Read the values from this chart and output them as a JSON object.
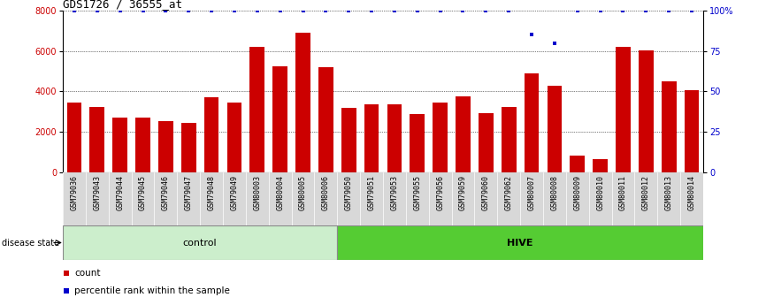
{
  "title": "GDS1726 / 36555_at",
  "samples": [
    "GSM79036",
    "GSM79043",
    "GSM79044",
    "GSM79045",
    "GSM79046",
    "GSM79047",
    "GSM79048",
    "GSM79049",
    "GSM80003",
    "GSM80004",
    "GSM80005",
    "GSM80006",
    "GSM79050",
    "GSM79051",
    "GSM79053",
    "GSM79055",
    "GSM79056",
    "GSM79059",
    "GSM79060",
    "GSM79062",
    "GSM80007",
    "GSM80008",
    "GSM80009",
    "GSM80010",
    "GSM80011",
    "GSM80012",
    "GSM80013",
    "GSM80014"
  ],
  "counts": [
    3450,
    3250,
    2700,
    2700,
    2550,
    2450,
    3700,
    3450,
    6200,
    5250,
    6900,
    5200,
    3200,
    3350,
    3350,
    2900,
    3450,
    3750,
    2950,
    3250,
    4900,
    4300,
    850,
    650,
    6200,
    6050,
    4500,
    4050
  ],
  "percentiles": [
    100,
    100,
    100,
    100,
    100,
    100,
    100,
    100,
    100,
    100,
    100,
    100,
    100,
    100,
    100,
    100,
    100,
    100,
    100,
    100,
    85,
    80,
    100,
    100,
    100,
    100,
    100,
    100
  ],
  "control_count": 12,
  "hive_count": 16,
  "bar_color": "#cc0000",
  "percentile_color": "#0000cc",
  "control_label": "control",
  "hive_label": "HIVE",
  "control_bg": "#cceecc",
  "hive_bg": "#55cc33",
  "disease_state_label": "disease state",
  "ylim_left": [
    0,
    8000
  ],
  "ylim_right": [
    0,
    100
  ],
  "yticks_left": [
    0,
    2000,
    4000,
    6000,
    8000
  ],
  "yticks_right": [
    0,
    25,
    50,
    75,
    100
  ],
  "ytick_right_labels": [
    "0",
    "25",
    "50",
    "75",
    "100%"
  ],
  "legend_count_label": "count",
  "legend_percentile_label": "percentile rank within the sample",
  "bg_color": "#ffffff",
  "title_fontsize": 9,
  "tick_fontsize": 7,
  "sample_fontsize": 6,
  "label_fontsize": 8,
  "bar_width": 0.65
}
